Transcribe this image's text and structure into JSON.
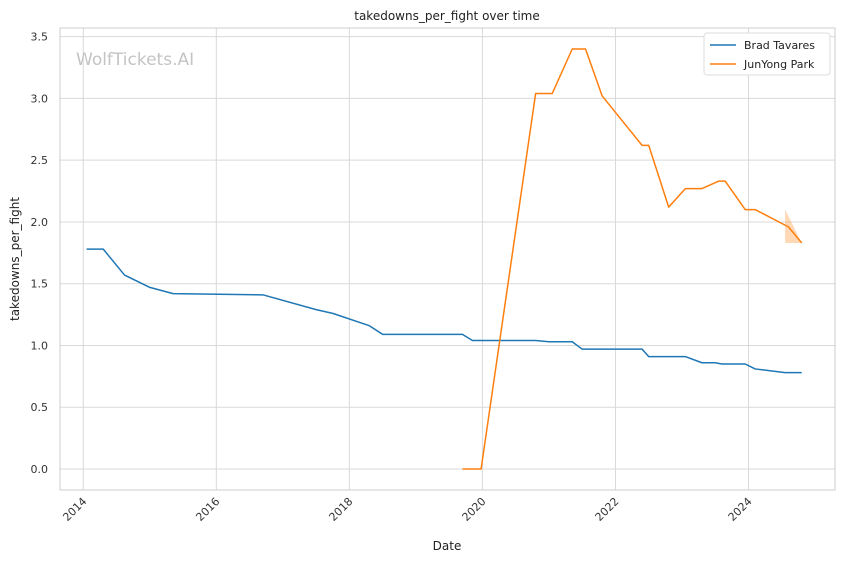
{
  "chart_data": {
    "type": "line",
    "title": "takedowns_per_fight over time",
    "xlabel": "Date",
    "ylabel": "takedowns_per_fight",
    "watermark": "WolfTickets.AI",
    "x_ticks": [
      "2014",
      "2016",
      "2018",
      "2020",
      "2022",
      "2024"
    ],
    "y_ticks": [
      "0.0",
      "0.5",
      "1.0",
      "1.5",
      "2.0",
      "2.5",
      "3.0",
      "3.5"
    ],
    "xlim": [
      2013.65,
      2025.3
    ],
    "ylim": [
      -0.17,
      3.57
    ],
    "grid": true,
    "legend_position": "top-right",
    "series": [
      {
        "name": "Brad Tavares",
        "color": "#1f77b4",
        "points": [
          [
            2014.05,
            1.78
          ],
          [
            2014.3,
            1.78
          ],
          [
            2014.62,
            1.57
          ],
          [
            2015.0,
            1.47
          ],
          [
            2015.35,
            1.42
          ],
          [
            2016.7,
            1.41
          ],
          [
            2017.5,
            1.29
          ],
          [
            2017.75,
            1.26
          ],
          [
            2018.3,
            1.16
          ],
          [
            2018.5,
            1.09
          ],
          [
            2019.7,
            1.09
          ],
          [
            2019.85,
            1.04
          ],
          [
            2020.8,
            1.04
          ],
          [
            2021.0,
            1.03
          ],
          [
            2021.35,
            1.03
          ],
          [
            2021.5,
            0.97
          ],
          [
            2022.4,
            0.97
          ],
          [
            2022.5,
            0.91
          ],
          [
            2023.05,
            0.91
          ],
          [
            2023.3,
            0.86
          ],
          [
            2023.5,
            0.86
          ],
          [
            2023.6,
            0.85
          ],
          [
            2023.95,
            0.85
          ],
          [
            2024.1,
            0.81
          ],
          [
            2024.55,
            0.78
          ],
          [
            2024.8,
            0.78
          ]
        ]
      },
      {
        "name": "JunYong Park",
        "color": "#ff7f0e",
        "points": [
          [
            2019.7,
            0.0
          ],
          [
            2019.98,
            0.0
          ],
          [
            2020.8,
            3.04
          ],
          [
            2021.05,
            3.04
          ],
          [
            2021.35,
            3.4
          ],
          [
            2021.55,
            3.4
          ],
          [
            2021.8,
            3.02
          ],
          [
            2022.4,
            2.62
          ],
          [
            2022.5,
            2.62
          ],
          [
            2022.8,
            2.12
          ],
          [
            2023.05,
            2.27
          ],
          [
            2023.3,
            2.27
          ],
          [
            2023.55,
            2.33
          ],
          [
            2023.65,
            2.33
          ],
          [
            2023.95,
            2.1
          ],
          [
            2024.1,
            2.1
          ],
          [
            2024.6,
            1.96
          ],
          [
            2024.8,
            1.83
          ]
        ],
        "band": [
          [
            2024.55,
            2.1,
            1.83
          ],
          [
            2024.8,
            1.83,
            1.83
          ]
        ]
      }
    ]
  }
}
